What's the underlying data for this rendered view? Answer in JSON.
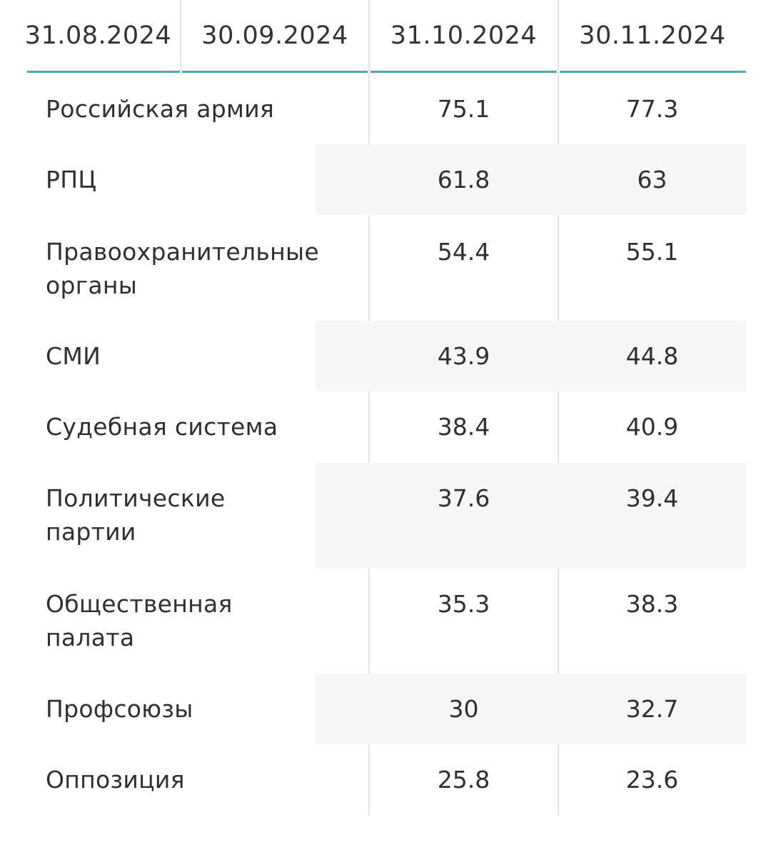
{
  "table": {
    "columns": [
      "31.08.2024",
      "30.09.2024",
      "31.10.2024",
      "30.11.2024"
    ],
    "rows": [
      {
        "label": "Российская армия",
        "v1": "75.1",
        "v2": "77.3"
      },
      {
        "label": "РПЦ",
        "v1": "61.8",
        "v2": "63"
      },
      {
        "label": "Правоохранительные органы",
        "v1": "54.4",
        "v2": "55.1"
      },
      {
        "label": "СМИ",
        "v1": "43.9",
        "v2": "44.8"
      },
      {
        "label": "Судебная система",
        "v1": "38.4",
        "v2": "40.9"
      },
      {
        "label": "Политические партии",
        "v1": "37.6",
        "v2": "39.4"
      },
      {
        "label": "Общественная палата",
        "v1": "35.3",
        "v2": "38.3"
      },
      {
        "label": "Профсоюзы",
        "v1": "30",
        "v2": "32.7"
      },
      {
        "label": "Оппозиция",
        "v1": "25.8",
        "v2": "23.6"
      }
    ]
  },
  "colors": {
    "accent_underline": "#3eb3a9",
    "stripe": "#f6f6f6",
    "separator": "#e4e4e4"
  }
}
